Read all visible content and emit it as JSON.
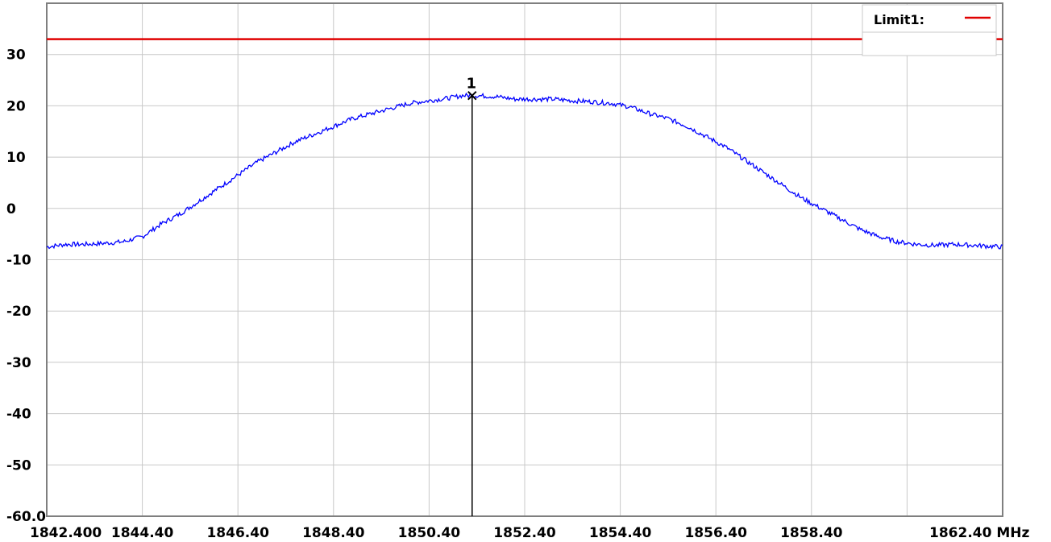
{
  "chart_data": {
    "type": "line",
    "title": "",
    "xlabel": "",
    "ylabel": "",
    "x_unit": "MHz",
    "xlim": [
      1842.4,
      1862.4
    ],
    "ylim": [
      -60,
      40
    ],
    "grid": true,
    "x_gridlines": [
      1842.4,
      1844.4,
      1846.4,
      1848.4,
      1850.4,
      1852.4,
      1854.4,
      1856.4,
      1858.4,
      1860.4,
      1862.4
    ],
    "y_gridlines": [
      -60,
      -50,
      -40,
      -30,
      -20,
      -10,
      0,
      10,
      20,
      30,
      40
    ],
    "x_ticks": [
      {
        "value": 1842.4,
        "label": "1842.400"
      },
      {
        "value": 1844.4,
        "label": "1844.40"
      },
      {
        "value": 1846.4,
        "label": "1846.40"
      },
      {
        "value": 1848.4,
        "label": "1848.40"
      },
      {
        "value": 1850.4,
        "label": "1850.40"
      },
      {
        "value": 1852.4,
        "label": "1852.40"
      },
      {
        "value": 1854.4,
        "label": "1854.40"
      },
      {
        "value": 1856.4,
        "label": "1856.40"
      },
      {
        "value": 1858.4,
        "label": "1858.40"
      },
      {
        "value": 1862.4,
        "label": "1862.40 MHz"
      }
    ],
    "y_ticks": [
      {
        "value": 30,
        "label": "30"
      },
      {
        "value": 20,
        "label": "20"
      },
      {
        "value": 10,
        "label": "10"
      },
      {
        "value": 0,
        "label": "0"
      },
      {
        "value": -10,
        "label": "-10"
      },
      {
        "value": -20,
        "label": "-20"
      },
      {
        "value": -30,
        "label": "-30"
      },
      {
        "value": -40,
        "label": "-40"
      },
      {
        "value": -50,
        "label": "-50"
      },
      {
        "value": -60,
        "label": "-60.0"
      }
    ],
    "series": [
      {
        "color": "#0000ff",
        "x": [
          1842.4,
          1842.8,
          1843.2,
          1843.6,
          1844.0,
          1844.4,
          1844.8,
          1845.2,
          1845.6,
          1846.0,
          1846.4,
          1846.8,
          1847.2,
          1847.6,
          1848.0,
          1848.4,
          1848.8,
          1849.2,
          1849.6,
          1850.0,
          1850.4,
          1850.8,
          1851.1,
          1851.4,
          1851.8,
          1852.2,
          1852.6,
          1853.0,
          1853.4,
          1853.8,
          1854.2,
          1854.6,
          1855.0,
          1855.4,
          1855.8,
          1856.2,
          1856.6,
          1857.0,
          1857.4,
          1857.8,
          1858.2,
          1858.6,
          1859.0,
          1859.4,
          1859.8,
          1860.2,
          1860.6,
          1861.0,
          1861.4,
          1861.8,
          1862.4
        ],
        "y": [
          -7.5,
          -7.0,
          -7.0,
          -6.8,
          -6.5,
          -5.5,
          -3.0,
          -1.0,
          1.5,
          4.0,
          6.5,
          9.0,
          11.0,
          13.0,
          14.5,
          16.0,
          17.5,
          18.5,
          19.5,
          20.5,
          21.0,
          21.5,
          22.0,
          22.0,
          21.8,
          21.3,
          21.3,
          21.3,
          21.0,
          20.8,
          20.5,
          19.8,
          18.5,
          17.5,
          16.0,
          14.0,
          12.0,
          9.5,
          7.0,
          4.5,
          2.0,
          0.0,
          -2.0,
          -4.0,
          -5.5,
          -6.5,
          -7.0,
          -7.2,
          -7.0,
          -7.2,
          -7.5
        ]
      }
    ],
    "limit_line": {
      "name": "Limit1:",
      "value": 33,
      "color": "#e00000"
    },
    "marker": {
      "label": "1",
      "x": 1851.3,
      "y": 22.0
    },
    "legend_position": "top-right"
  }
}
